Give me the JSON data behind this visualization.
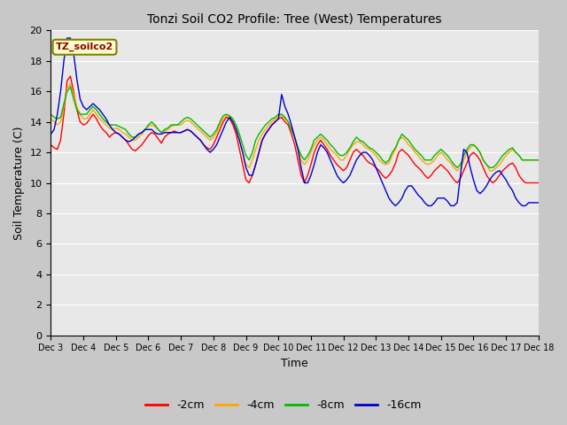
{
  "title": "Tonzi Soil CO2 Profile: Tree (West) Temperatures",
  "xlabel": "Time",
  "ylabel": "Soil Temperature (C)",
  "annotation_text": "TZ_soilco2",
  "ylim": [
    0,
    20
  ],
  "xlim": [
    0,
    15
  ],
  "yticks": [
    0,
    2,
    4,
    6,
    8,
    10,
    12,
    14,
    16,
    18,
    20
  ],
  "xtick_labels": [
    "Dec 3",
    "Dec 4",
    "Dec 5",
    "Dec 6",
    "Dec 7",
    "Dec 8",
    "Dec 9",
    "Dec 10",
    "Dec 11",
    "Dec 12",
    "Dec 13",
    "Dec 14",
    "Dec 15",
    "Dec 16",
    "Dec 17",
    "Dec 18"
  ],
  "colors": {
    "-2cm": "#ff0000",
    "-4cm": "#ffa500",
    "-8cm": "#00bb00",
    "-16cm": "#0000cc"
  },
  "fig_bg": "#d0d0d0",
  "plot_bg": "#e8e8e8",
  "legend_colors": [
    "#ff0000",
    "#ffa500",
    "#00bb00",
    "#0000cc"
  ],
  "legend_labels": [
    "-2cm",
    "-4cm",
    "-8cm",
    "-16cm"
  ],
  "data": {
    "x": [
      0.0,
      0.1,
      0.2,
      0.3,
      0.4,
      0.5,
      0.6,
      0.7,
      0.8,
      0.9,
      1.0,
      1.1,
      1.2,
      1.3,
      1.4,
      1.5,
      1.6,
      1.7,
      1.8,
      1.9,
      2.0,
      2.1,
      2.2,
      2.3,
      2.4,
      2.5,
      2.6,
      2.7,
      2.8,
      2.9,
      3.0,
      3.1,
      3.2,
      3.3,
      3.4,
      3.5,
      3.6,
      3.7,
      3.8,
      3.9,
      4.0,
      4.1,
      4.2,
      4.3,
      4.4,
      4.5,
      4.6,
      4.7,
      4.8,
      4.9,
      5.0,
      5.1,
      5.2,
      5.3,
      5.4,
      5.5,
      5.6,
      5.7,
      5.8,
      5.9,
      6.0,
      6.1,
      6.2,
      6.3,
      6.4,
      6.5,
      6.6,
      6.7,
      6.8,
      6.9,
      7.0,
      7.1,
      7.2,
      7.3,
      7.4,
      7.5,
      7.6,
      7.7,
      7.8,
      7.9,
      8.0,
      8.1,
      8.2,
      8.3,
      8.4,
      8.5,
      8.6,
      8.7,
      8.8,
      8.9,
      9.0,
      9.1,
      9.2,
      9.3,
      9.4,
      9.5,
      9.6,
      9.7,
      9.8,
      9.9,
      10.0,
      10.1,
      10.2,
      10.3,
      10.4,
      10.5,
      10.6,
      10.7,
      10.8,
      10.9,
      11.0,
      11.1,
      11.2,
      11.3,
      11.4,
      11.5,
      11.6,
      11.7,
      11.8,
      11.9,
      12.0,
      12.1,
      12.2,
      12.3,
      12.4,
      12.5,
      12.6,
      12.7,
      12.8,
      12.9,
      13.0,
      13.1,
      13.2,
      13.3,
      13.4,
      13.5,
      13.6,
      13.7,
      13.8,
      13.9,
      14.0,
      14.1,
      14.2,
      14.3,
      14.4,
      14.5,
      14.6,
      14.7,
      14.8,
      14.9,
      15.0
    ],
    "y_2cm": [
      12.5,
      12.3,
      12.2,
      12.8,
      14.5,
      16.7,
      17.0,
      16.0,
      14.8,
      14.0,
      13.8,
      13.9,
      14.2,
      14.5,
      14.2,
      13.8,
      13.5,
      13.3,
      13.0,
      13.2,
      13.3,
      13.2,
      13.0,
      12.8,
      12.5,
      12.2,
      12.1,
      12.3,
      12.5,
      12.8,
      13.1,
      13.3,
      13.2,
      12.9,
      12.6,
      13.0,
      13.2,
      13.3,
      13.4,
      13.3,
      13.3,
      13.4,
      13.5,
      13.4,
      13.2,
      13.0,
      12.8,
      12.5,
      12.3,
      12.2,
      12.5,
      13.0,
      13.5,
      14.0,
      14.3,
      14.2,
      13.8,
      13.2,
      12.2,
      11.2,
      10.2,
      10.0,
      10.5,
      11.2,
      12.0,
      12.8,
      13.2,
      13.5,
      13.8,
      14.0,
      14.2,
      14.3,
      14.0,
      13.8,
      13.2,
      12.5,
      11.5,
      10.5,
      10.0,
      10.5,
      11.2,
      12.0,
      12.5,
      12.8,
      12.5,
      12.2,
      11.8,
      11.5,
      11.2,
      11.0,
      10.8,
      11.0,
      11.5,
      12.0,
      12.2,
      12.0,
      11.8,
      11.5,
      11.3,
      11.2,
      11.0,
      10.8,
      10.5,
      10.3,
      10.5,
      10.8,
      11.3,
      12.0,
      12.2,
      12.0,
      11.8,
      11.5,
      11.2,
      11.0,
      10.8,
      10.5,
      10.3,
      10.5,
      10.8,
      11.0,
      11.2,
      11.0,
      10.8,
      10.5,
      10.2,
      10.0,
      10.3,
      10.8,
      11.3,
      11.8,
      12.0,
      11.8,
      11.5,
      11.0,
      10.5,
      10.2,
      10.0,
      10.2,
      10.5,
      10.8,
      11.0,
      11.2,
      11.3,
      11.0,
      10.5,
      10.2,
      10.0,
      10.0,
      10.0,
      10.0,
      10.0
    ],
    "y_4cm": [
      14.2,
      14.0,
      13.8,
      14.0,
      15.0,
      16.2,
      16.5,
      15.8,
      15.0,
      14.5,
      14.2,
      14.2,
      14.5,
      14.8,
      14.5,
      14.2,
      14.0,
      13.8,
      13.6,
      13.5,
      13.6,
      13.5,
      13.3,
      13.2,
      13.0,
      12.8,
      12.8,
      13.0,
      13.2,
      13.5,
      13.7,
      13.8,
      13.7,
      13.5,
      13.3,
      13.4,
      13.5,
      13.7,
      13.8,
      13.8,
      13.8,
      14.0,
      14.1,
      14.0,
      13.8,
      13.6,
      13.4,
      13.2,
      13.0,
      12.8,
      13.0,
      13.3,
      13.8,
      14.2,
      14.4,
      14.3,
      14.0,
      13.5,
      12.8,
      12.0,
      11.2,
      11.0,
      11.5,
      12.2,
      12.8,
      13.2,
      13.5,
      13.8,
      14.0,
      14.2,
      14.3,
      14.5,
      14.2,
      14.0,
      13.5,
      13.0,
      12.2,
      11.5,
      11.2,
      11.5,
      12.0,
      12.5,
      12.8,
      13.0,
      12.8,
      12.5,
      12.2,
      12.0,
      11.8,
      11.5,
      11.5,
      11.8,
      12.2,
      12.5,
      12.7,
      12.7,
      12.5,
      12.3,
      12.2,
      12.0,
      11.8,
      11.5,
      11.3,
      11.2,
      11.3,
      11.8,
      12.2,
      12.8,
      13.0,
      12.8,
      12.5,
      12.3,
      12.0,
      11.8,
      11.5,
      11.3,
      11.2,
      11.3,
      11.5,
      11.8,
      12.0,
      11.8,
      11.5,
      11.3,
      11.0,
      10.8,
      11.0,
      11.5,
      12.0,
      12.3,
      12.5,
      12.3,
      12.0,
      11.5,
      11.2,
      10.8,
      10.8,
      11.0,
      11.2,
      11.5,
      11.8,
      12.0,
      12.2,
      12.0,
      11.8,
      11.5,
      11.5,
      11.5,
      11.5,
      11.5,
      11.5
    ],
    "y_8cm": [
      14.5,
      14.3,
      14.2,
      14.3,
      15.2,
      16.0,
      16.3,
      15.5,
      14.8,
      14.5,
      14.5,
      14.5,
      14.8,
      15.0,
      14.8,
      14.5,
      14.2,
      14.0,
      13.8,
      13.8,
      13.8,
      13.7,
      13.6,
      13.5,
      13.2,
      13.0,
      13.0,
      13.2,
      13.3,
      13.5,
      13.8,
      14.0,
      13.8,
      13.5,
      13.3,
      13.5,
      13.6,
      13.8,
      13.8,
      13.8,
      14.0,
      14.2,
      14.3,
      14.2,
      14.0,
      13.8,
      13.6,
      13.4,
      13.2,
      13.0,
      13.2,
      13.5,
      14.0,
      14.4,
      14.5,
      14.4,
      14.2,
      13.8,
      13.2,
      12.5,
      11.8,
      11.5,
      12.0,
      12.8,
      13.2,
      13.5,
      13.8,
      14.0,
      14.2,
      14.3,
      14.5,
      14.5,
      14.3,
      14.0,
      13.5,
      13.0,
      12.3,
      11.8,
      11.5,
      11.8,
      12.2,
      12.8,
      13.0,
      13.2,
      13.0,
      12.8,
      12.5,
      12.3,
      12.0,
      11.8,
      11.8,
      12.0,
      12.3,
      12.7,
      13.0,
      12.8,
      12.7,
      12.5,
      12.3,
      12.2,
      12.0,
      11.8,
      11.5,
      11.3,
      11.5,
      12.0,
      12.3,
      12.8,
      13.2,
      13.0,
      12.8,
      12.5,
      12.2,
      12.0,
      11.8,
      11.5,
      11.5,
      11.5,
      11.8,
      12.0,
      12.2,
      12.0,
      11.8,
      11.5,
      11.2,
      11.0,
      11.2,
      11.8,
      12.2,
      12.5,
      12.5,
      12.3,
      12.0,
      11.5,
      11.2,
      11.0,
      11.0,
      11.2,
      11.5,
      11.8,
      12.0,
      12.2,
      12.3,
      12.0,
      11.8,
      11.5,
      11.5,
      11.5,
      11.5,
      11.5,
      11.5
    ],
    "y_16cm": [
      13.2,
      13.5,
      14.5,
      16.0,
      18.0,
      19.5,
      19.5,
      18.5,
      16.8,
      15.5,
      15.0,
      14.8,
      15.0,
      15.2,
      15.0,
      14.8,
      14.5,
      14.2,
      13.8,
      13.5,
      13.3,
      13.2,
      13.0,
      12.8,
      12.7,
      12.8,
      13.0,
      13.2,
      13.3,
      13.5,
      13.5,
      13.5,
      13.3,
      13.2,
      13.2,
      13.3,
      13.3,
      13.3,
      13.3,
      13.3,
      13.3,
      13.4,
      13.5,
      13.4,
      13.2,
      13.0,
      12.8,
      12.5,
      12.2,
      12.0,
      12.2,
      12.5,
      13.0,
      13.5,
      14.0,
      14.3,
      14.0,
      13.5,
      12.8,
      12.0,
      11.0,
      10.5,
      10.5,
      11.2,
      12.0,
      12.8,
      13.2,
      13.5,
      13.8,
      14.0,
      14.2,
      15.8,
      15.0,
      14.5,
      13.8,
      13.0,
      12.2,
      11.0,
      10.0,
      10.0,
      10.5,
      11.2,
      12.0,
      12.5,
      12.3,
      12.0,
      11.5,
      11.0,
      10.5,
      10.2,
      10.0,
      10.2,
      10.5,
      11.0,
      11.5,
      11.8,
      12.0,
      12.0,
      11.8,
      11.5,
      11.0,
      10.5,
      10.0,
      9.5,
      9.0,
      8.7,
      8.5,
      8.7,
      9.0,
      9.5,
      9.8,
      9.8,
      9.5,
      9.2,
      9.0,
      8.7,
      8.5,
      8.5,
      8.7,
      9.0,
      9.0,
      9.0,
      8.8,
      8.5,
      8.5,
      8.7,
      10.5,
      12.2,
      12.0,
      11.0,
      10.2,
      9.5,
      9.3,
      9.5,
      9.8,
      10.2,
      10.5,
      10.7,
      10.8,
      10.5,
      10.2,
      9.8,
      9.5,
      9.0,
      8.7,
      8.5,
      8.5,
      8.7,
      8.7,
      8.7,
      8.7
    ]
  }
}
